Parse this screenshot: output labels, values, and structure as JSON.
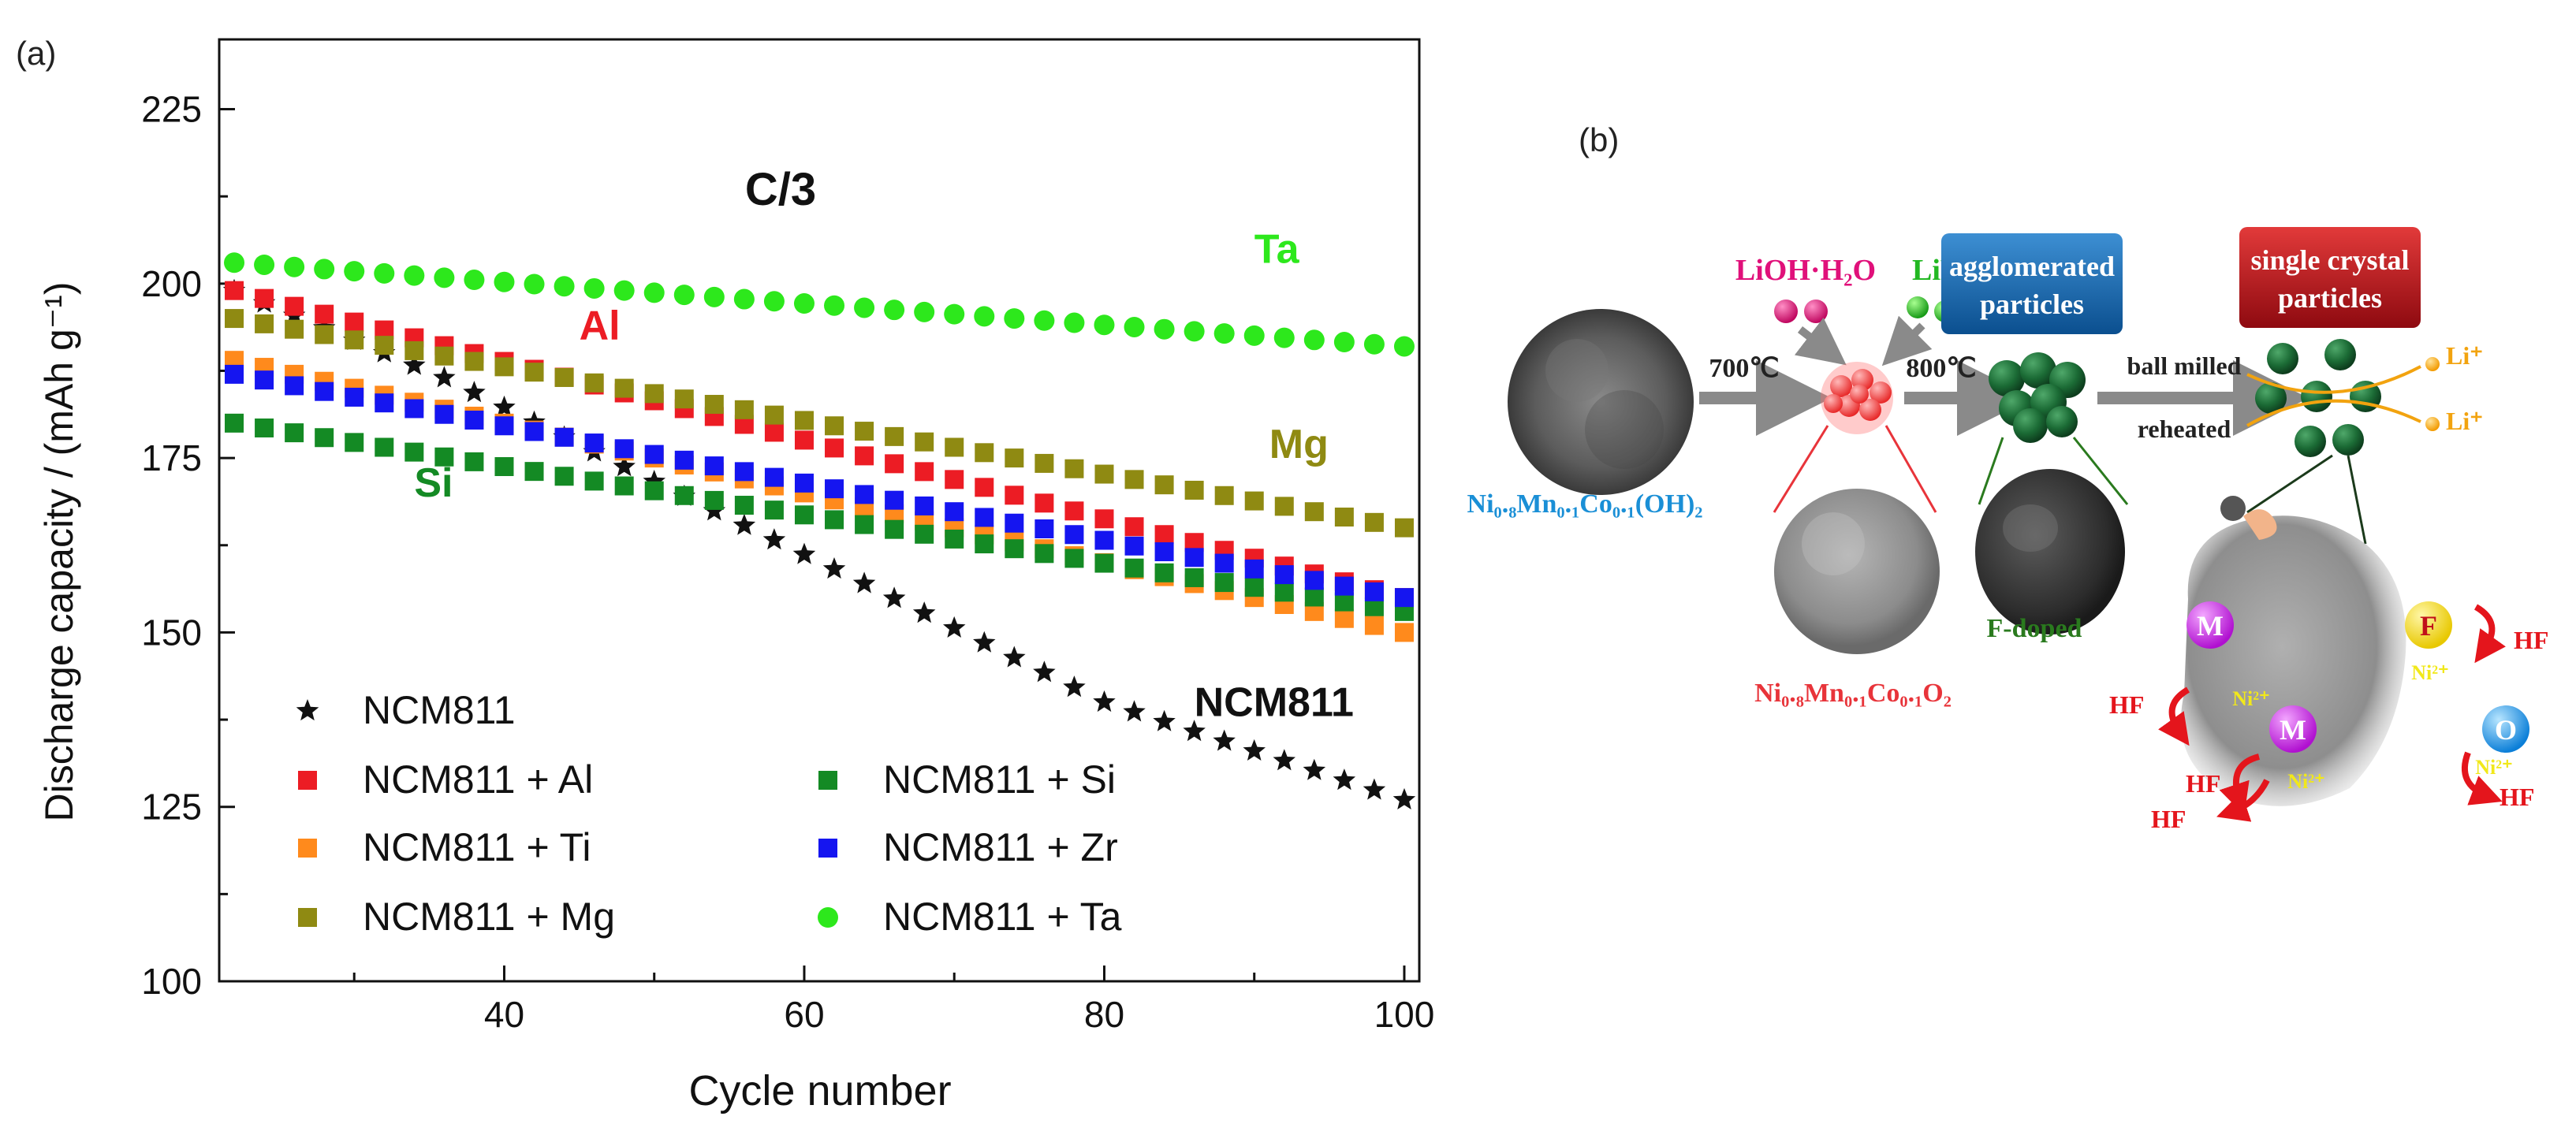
{
  "panel_a": {
    "label": "(a)"
  },
  "panel_b": {
    "label": "(b)",
    "reagent_lioh": "LiOH·H₂O",
    "reagent_lif": "LiF",
    "step1_temp": "700℃",
    "step2_temp": "800℃",
    "step3_top": "ball milled",
    "step3_bottom": "reheated",
    "box_agglomerated": [
      "agglomerated",
      "particles"
    ],
    "box_single": [
      "single crystal",
      "particles"
    ],
    "precursor_formula": "Ni₀.₈Mn₀.₁Co₀.₁(OH)₂",
    "oxide_formula": "Ni₀.₈Mn₀.₁Co₀.₁O₂",
    "fdoped_label": "F-doped",
    "li_ion_1": "Li⁺",
    "li_ion_2": "Li⁺",
    "metal_m1": "M",
    "metal_m2": "M",
    "anion_f": "F",
    "anion_o": "O",
    "ni_labels": [
      "Ni²⁺",
      "Ni²⁺",
      "Ni²⁺",
      "Ni²⁺"
    ],
    "hf_labels": [
      "HF",
      "HF",
      "HF",
      "HF",
      "HF"
    ],
    "colors": {
      "lioh": "#e0107a",
      "lif": "#22b822",
      "precursor_blue": "#1a8fd6",
      "oxide_red": "#e8343a",
      "fdoped_green": "#2a7a1e",
      "box_blue": "#1167b1",
      "box_red": "#c0101a",
      "li_orange": "#f2a30f",
      "hf_red": "#e4151c",
      "m_magenta": "#c516e0",
      "f_yellow": "#f4e31a",
      "o_blue": "#1b8fe6",
      "ni_yellow": "#f1e81a"
    }
  },
  "chart_data": {
    "type": "scatter",
    "title": "C/3",
    "xlabel": "Cycle number",
    "ylabel": "Discharge capacity / (mAh g⁻¹)",
    "xlim": [
      21,
      101
    ],
    "ylim": [
      100,
      235
    ],
    "xticks": [
      40,
      60,
      80,
      100
    ],
    "yticks": [
      100,
      125,
      150,
      175,
      200,
      225
    ],
    "grid": false,
    "legend_position": "bottom-left",
    "series": [
      {
        "name": "NCM811",
        "marker": "star",
        "color": "#111111",
        "start": 199,
        "end": 126,
        "points": [
          [
            36,
            186.5
          ],
          [
            52,
            169.5
          ],
          [
            64,
            157
          ],
          [
            80,
            140
          ],
          [
            90,
            133
          ],
          [
            100,
            126
          ]
        ]
      },
      {
        "name": "NCM811 + Al",
        "marker": "square",
        "color": "#ec1c24",
        "start": 199,
        "end": 155
      },
      {
        "name": "NCM811 + Ti",
        "marker": "square",
        "color": "#ff8a1c",
        "start": 189,
        "end": 150
      },
      {
        "name": "NCM811 + Mg",
        "marker": "square",
        "color": "#8f8a12",
        "start": 195,
        "end": 165
      },
      {
        "name": "NCM811 + Si",
        "marker": "square",
        "color": "#148a24",
        "start": 180,
        "end": 153
      },
      {
        "name": "NCM811 + Zr",
        "marker": "square",
        "color": "#1515f0",
        "start": 187,
        "end": 155
      },
      {
        "name": "NCM811 + Ta",
        "marker": "circle",
        "color": "#2de81c",
        "start": 203,
        "end": 191
      }
    ],
    "annotations": [
      {
        "text": "Ta",
        "x": 90,
        "y": 203,
        "color": "#2de81c"
      },
      {
        "text": "Al",
        "x": 45,
        "y": 192,
        "color": "#ec1c24"
      },
      {
        "text": "Mg",
        "x": 91,
        "y": 175,
        "color": "#8f8a12"
      },
      {
        "text": "Si",
        "x": 34,
        "y": 169.5,
        "color": "#148a24"
      },
      {
        "text": "NCM811",
        "x": 86,
        "y": 138,
        "color": "#111111"
      }
    ]
  }
}
